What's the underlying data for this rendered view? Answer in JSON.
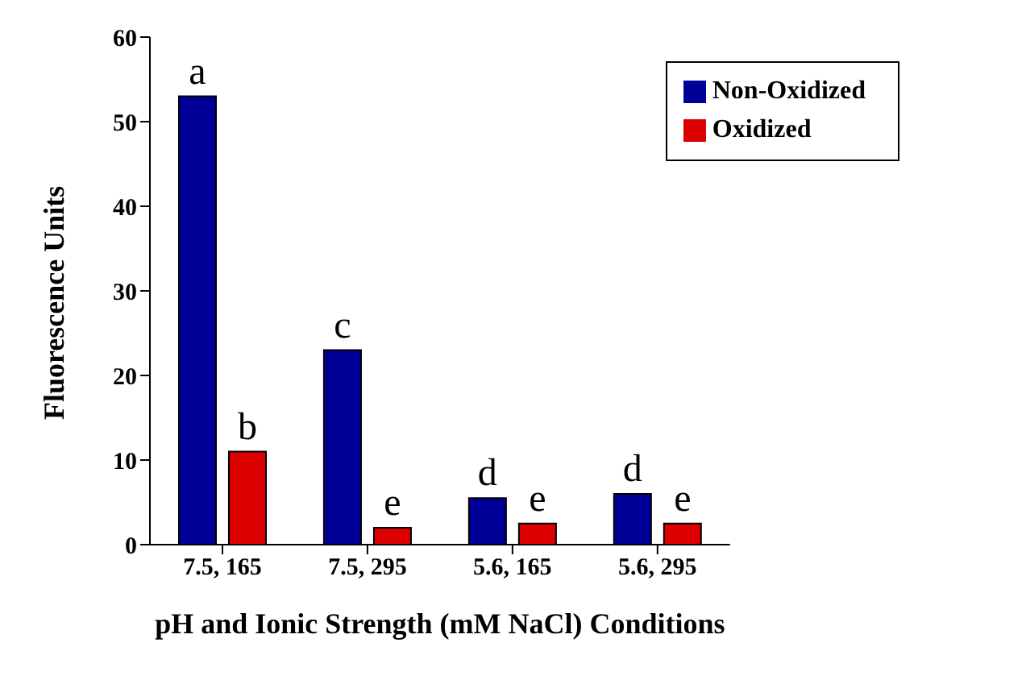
{
  "chart_data": {
    "type": "bar",
    "xlabel": "pH and Ionic Strength (mM NaCl) Conditions",
    "ylabel": "Fluorescence Units",
    "categories": [
      "7.5, 165",
      "7.5, 295",
      "5.6, 165",
      "5.6, 295"
    ],
    "series": [
      {
        "name": "Non-Oxidized",
        "color": "#000099",
        "values": [
          53,
          23,
          5.5,
          6
        ],
        "value_labels": [
          "a",
          "c",
          "d",
          "d"
        ]
      },
      {
        "name": "Oxidized",
        "color": "#dd0000",
        "values": [
          11,
          2,
          2.5,
          2.5
        ],
        "value_labels": [
          "b",
          "e",
          "e",
          "e"
        ]
      }
    ],
    "ylim": [
      0,
      60
    ],
    "yticks": [
      0,
      10,
      20,
      30,
      40,
      50,
      60
    ],
    "grid": false,
    "legend": "top right"
  }
}
